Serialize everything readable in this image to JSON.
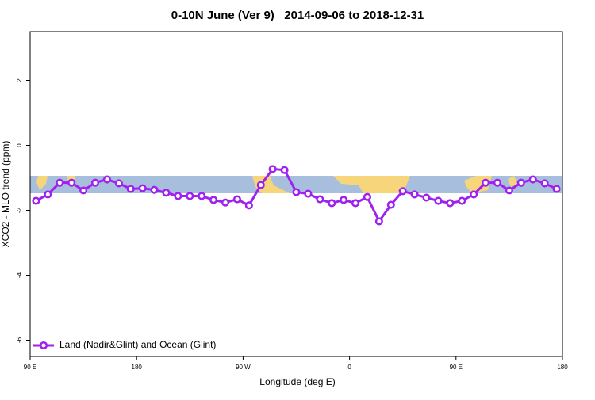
{
  "chart_data": {
    "type": "line",
    "title": "0-10N June (Ver 9)   2014-09-06 to 2018-12-31",
    "xlabel": "Longitude (deg E)",
    "ylabel": "XCO2 - MLO trend (ppm)",
    "xlim": [
      90,
      540
    ],
    "xticks": [
      {
        "value": 90,
        "label": "90 E"
      },
      180,
      {
        "value": 270,
        "label": "90 W"
      },
      {
        "value": 360,
        "label": "0"
      },
      {
        "value": 450,
        "label": "90 E"
      },
      {
        "value": 540,
        "label": "180"
      }
    ],
    "ylim": [
      -6.5,
      3.5
    ],
    "yticks": [
      -6,
      -4,
      -2,
      0,
      2
    ],
    "legend": "bottom-left",
    "series": [
      {
        "name": "Land (Nadir&Glint) and Ocean (Glint)",
        "color": "#a020f0",
        "x": [
          95,
          105,
          115,
          125,
          135,
          145,
          155,
          165,
          175,
          185,
          195,
          205,
          215,
          225,
          235,
          245,
          255,
          265,
          275,
          285,
          295,
          305,
          315,
          325,
          335,
          345,
          355,
          365,
          375,
          385,
          395,
          405,
          415,
          425,
          435,
          445,
          455,
          465,
          475,
          485,
          495,
          505,
          515,
          525,
          535
        ],
        "values": [
          -1.71,
          -1.51,
          -1.15,
          -1.15,
          -1.39,
          -1.15,
          -1.05,
          -1.17,
          -1.34,
          -1.32,
          -1.37,
          -1.46,
          -1.56,
          -1.56,
          -1.56,
          -1.68,
          -1.76,
          -1.66,
          -1.85,
          -1.22,
          -0.73,
          -0.76,
          -1.44,
          -1.49,
          -1.66,
          -1.78,
          -1.68,
          -1.78,
          -1.59,
          -2.34,
          -1.83,
          -1.41,
          -1.51,
          -1.61,
          -1.71,
          -1.78,
          -1.71,
          -1.51,
          -1.15,
          -1.15,
          -1.39,
          -1.15,
          -1.05,
          -1.17,
          -1.34
        ]
      }
    ]
  }
}
